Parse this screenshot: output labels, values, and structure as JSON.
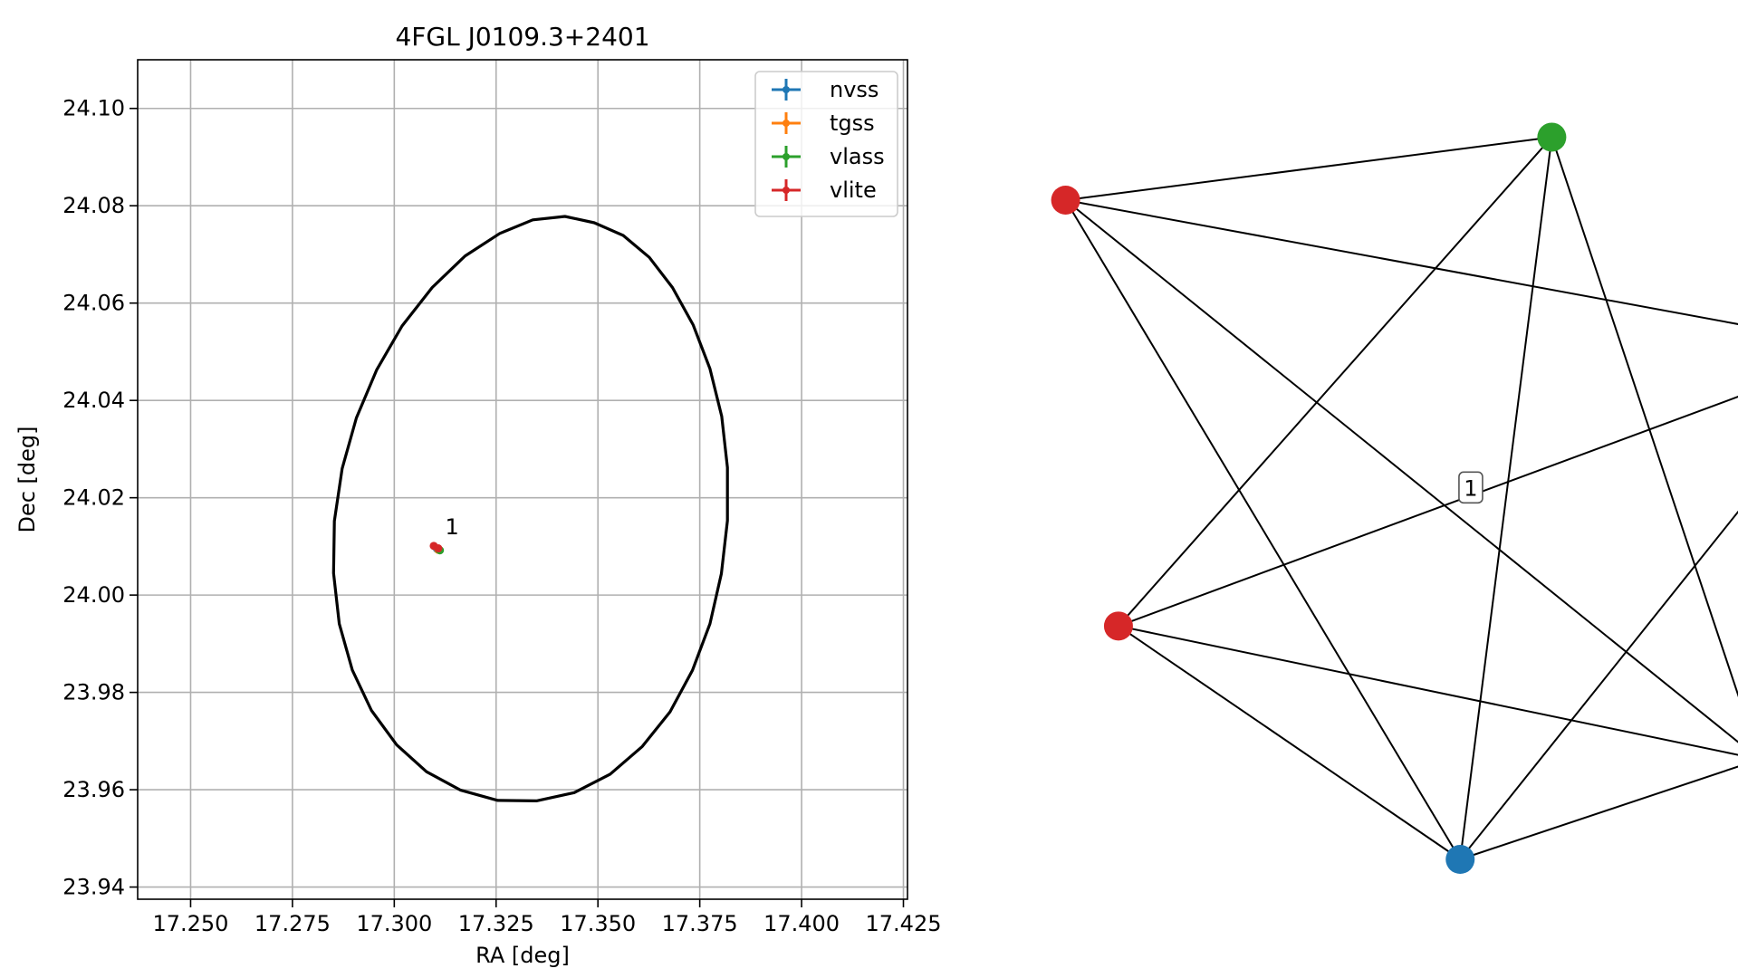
{
  "chart_data": [
    {
      "type": "scatter",
      "title": "4FGL J0109.3+2401",
      "xlabel": "RA [deg]",
      "ylabel": "Dec [deg]",
      "xlim": [
        17.237,
        17.426
      ],
      "ylim": [
        23.9375,
        24.11
      ],
      "xticks": [
        17.25,
        17.275,
        17.3,
        17.325,
        17.35,
        17.375,
        17.4,
        17.425
      ],
      "xtick_labels": [
        "17.250",
        "17.275",
        "17.300",
        "17.325",
        "17.350",
        "17.375",
        "17.400",
        "17.425"
      ],
      "yticks": [
        23.94,
        23.96,
        23.98,
        24.0,
        24.02,
        24.04,
        24.06,
        24.08,
        24.1
      ],
      "ytick_labels": [
        "23.94",
        "23.96",
        "23.98",
        "24.00",
        "24.02",
        "24.04",
        "24.06",
        "24.08",
        "24.10"
      ],
      "grid": true,
      "legend_position": "top-right",
      "series": [
        {
          "name": "nvss",
          "color": "#1f77b4",
          "points": [
            {
              "x": 17.3105,
              "y": 24.0095
            }
          ]
        },
        {
          "name": "tgss",
          "color": "#ff7f0e",
          "points": [
            {
              "x": 17.3108,
              "y": 24.0093
            }
          ]
        },
        {
          "name": "vlass",
          "color": "#2ca02c",
          "points": [
            {
              "x": 17.3112,
              "y": 24.0092
            },
            {
              "x": 17.3109,
              "y": 24.0094
            }
          ]
        },
        {
          "name": "vlite",
          "color": "#d62728",
          "points": [
            {
              "x": 17.3097,
              "y": 24.0101
            },
            {
              "x": 17.3108,
              "y": 24.0096
            }
          ]
        }
      ],
      "annotations": [
        {
          "text": "1",
          "x": 17.3125,
          "y": 24.0125
        }
      ],
      "ellipse": {
        "color": "#000000",
        "vertices": [
          [
            17.3419,
            24.0778
          ],
          [
            17.3491,
            24.0765
          ],
          [
            17.3562,
            24.0739
          ],
          [
            17.3626,
            24.0694
          ],
          [
            17.3683,
            24.0632
          ],
          [
            17.3734,
            24.0555
          ],
          [
            17.3775,
            24.0465
          ],
          [
            17.3804,
            24.0367
          ],
          [
            17.3818,
            24.0262
          ],
          [
            17.3818,
            24.0153
          ],
          [
            17.3803,
            24.0044
          ],
          [
            17.3775,
            23.9941
          ],
          [
            17.3732,
            23.9845
          ],
          [
            17.3677,
            23.976
          ],
          [
            17.3609,
            23.9689
          ],
          [
            17.353,
            23.9632
          ],
          [
            17.3442,
            23.9594
          ],
          [
            17.3349,
            23.9577
          ],
          [
            17.3254,
            23.9578
          ],
          [
            17.3163,
            23.9599
          ],
          [
            17.3079,
            23.9637
          ],
          [
            17.3006,
            23.9692
          ],
          [
            17.2944,
            23.9763
          ],
          [
            17.2897,
            23.9846
          ],
          [
            17.2865,
            23.9941
          ],
          [
            17.2851,
            24.0045
          ],
          [
            17.2853,
            24.0152
          ],
          [
            17.2872,
            24.026
          ],
          [
            17.2907,
            24.0364
          ],
          [
            17.2957,
            24.0463
          ],
          [
            17.3019,
            24.0553
          ],
          [
            17.3093,
            24.0632
          ],
          [
            17.3174,
            24.0697
          ],
          [
            17.3259,
            24.0743
          ],
          [
            17.334,
            24.0771
          ]
        ]
      }
    },
    {
      "type": "network",
      "label": "1",
      "nodes": [
        {
          "id": "n1",
          "series": "vlass",
          "color": "#2ca02c",
          "x": 0.6,
          "y": 0.95
        },
        {
          "id": "n2",
          "series": "vlite",
          "color": "#d62728",
          "x": -0.78,
          "y": 0.78
        },
        {
          "id": "n3",
          "series": "vlass",
          "color": "#2ca02c",
          "x": 1.5,
          "y": 0.38
        },
        {
          "id": "n4",
          "series": "vlite",
          "color": "#d62728",
          "x": -0.63,
          "y": -0.37
        },
        {
          "id": "n5",
          "series": "tgss",
          "color": "#ff7f0e",
          "x": 1.19,
          "y": -0.73
        },
        {
          "id": "n6",
          "series": "nvss",
          "color": "#1f77b4",
          "x": 0.34,
          "y": -1.0
        }
      ],
      "edges": [
        [
          "n1",
          "n2"
        ],
        [
          "n1",
          "n4"
        ],
        [
          "n1",
          "n5"
        ],
        [
          "n1",
          "n6"
        ],
        [
          "n2",
          "n3"
        ],
        [
          "n2",
          "n5"
        ],
        [
          "n2",
          "n6"
        ],
        [
          "n3",
          "n4"
        ],
        [
          "n3",
          "n5"
        ],
        [
          "n3",
          "n6"
        ],
        [
          "n4",
          "n5"
        ],
        [
          "n4",
          "n6"
        ],
        [
          "n5",
          "n6"
        ]
      ]
    }
  ]
}
